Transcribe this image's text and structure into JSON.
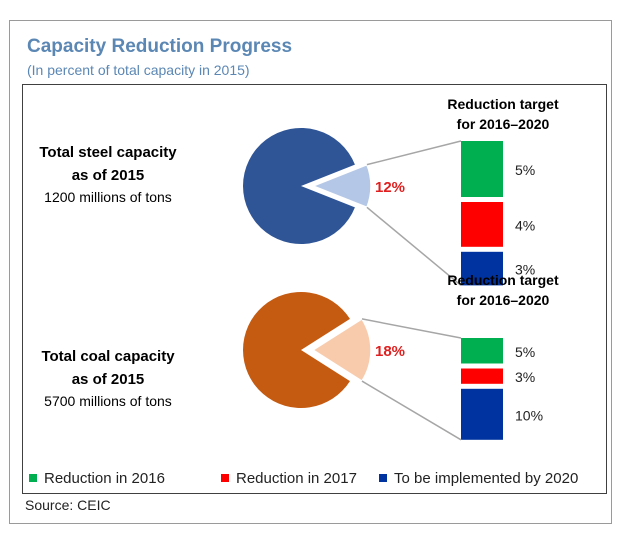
{
  "title": "Capacity Reduction Progress",
  "subtitle": "(In percent of total capacity in 2015)",
  "source": "Source: CEIC",
  "chart_data": [
    {
      "type": "pie",
      "label_line1": "Total steel capacity",
      "label_line2": "as of 2015",
      "label_line3": "1200 millions of tons",
      "slice_label": "12%",
      "slices": [
        {
          "name": "Reduction target",
          "value": 12,
          "color": "#b4c7e7"
        },
        {
          "name": "Remaining",
          "value": 88,
          "color": "#2f5597"
        }
      ],
      "target_title_line1": "Reduction target",
      "target_title_line2": "for 2016–2020",
      "breakdown": [
        {
          "series": "Reduction in 2016",
          "value": 5,
          "label": "5%"
        },
        {
          "series": "Reduction in 2017",
          "value": 4,
          "label": "4%"
        },
        {
          "series": "To be implemented by 2020",
          "value": 3,
          "label": "3%"
        }
      ]
    },
    {
      "type": "pie",
      "label_line1": "Total coal capacity",
      "label_line2": "as of 2015",
      "label_line3": "5700 millions of tons",
      "slice_label": "18%",
      "slices": [
        {
          "name": "Reduction target",
          "value": 18,
          "color": "#f8cbad"
        },
        {
          "name": "Remaining",
          "value": 82,
          "color": "#c55a11"
        }
      ],
      "target_title_line1": "Reduction target",
      "target_title_line2": "for 2016–2020",
      "breakdown": [
        {
          "series": "Reduction in 2016",
          "value": 5,
          "label": "5%"
        },
        {
          "series": "Reduction in 2017",
          "value": 3,
          "label": "3%"
        },
        {
          "series": "To be implemented by 2020",
          "value": 10,
          "label": "10%"
        }
      ]
    }
  ],
  "legend": [
    {
      "label": "Reduction in 2016",
      "color": "#00b050"
    },
    {
      "label": "Reduction in 2017",
      "color": "#ff0000"
    },
    {
      "label": "To be implemented by 2020",
      "color": "#0033a0"
    }
  ],
  "colors": {
    "title": "#5b87b4",
    "slice_label": "#e02020"
  }
}
